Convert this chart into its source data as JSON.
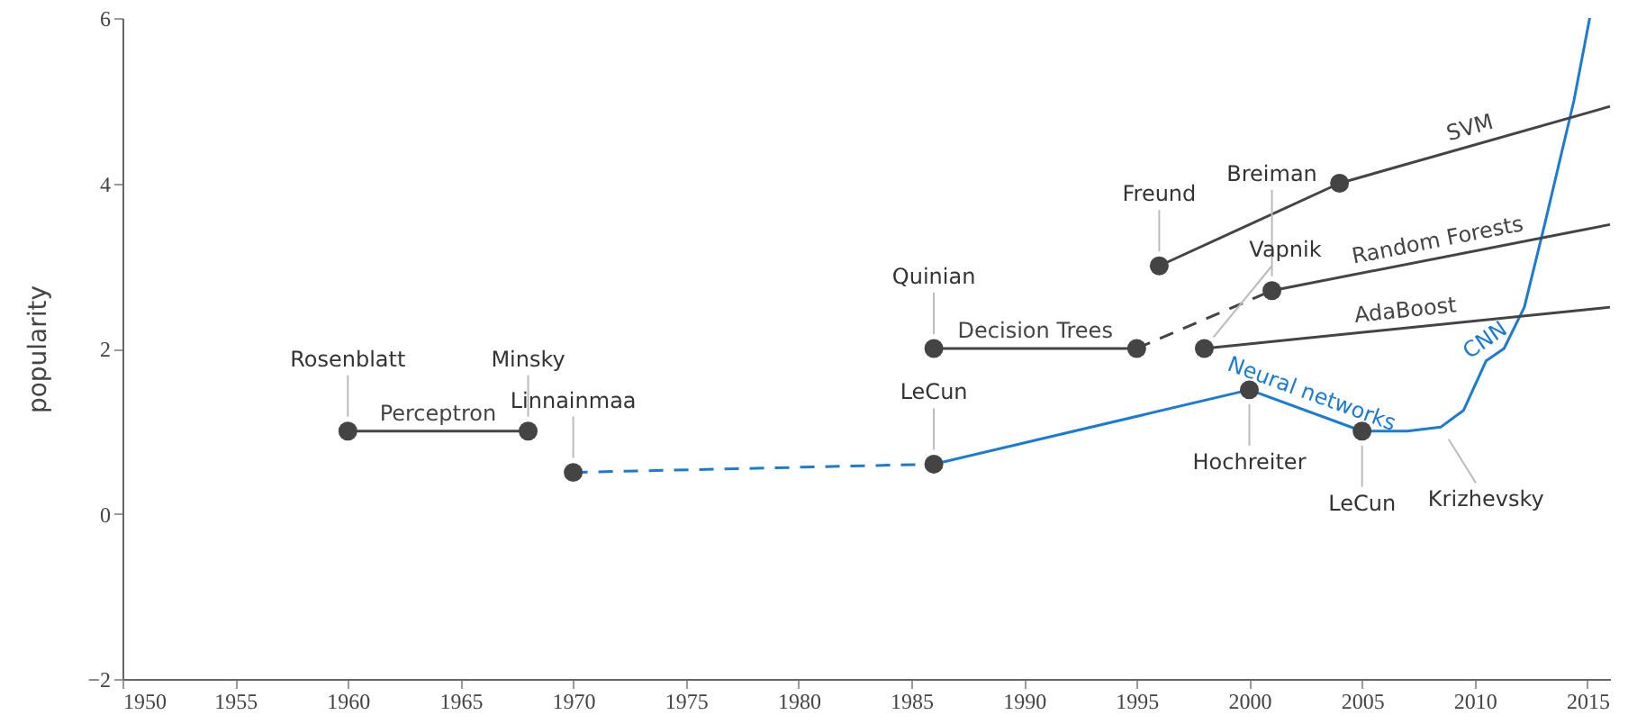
{
  "chart_data": {
    "type": "line",
    "ylabel": "popularity",
    "xlim": [
      1950,
      2016
    ],
    "ylim": [
      -2,
      6
    ],
    "xticks": [
      1950,
      1955,
      1960,
      1965,
      1970,
      1975,
      1980,
      1985,
      1990,
      1995,
      2000,
      2005,
      2010,
      2015
    ],
    "yticks": [
      -2,
      0,
      2,
      4,
      6
    ],
    "grid": false,
    "marker": "none",
    "series": [
      {
        "name": "Perceptron",
        "color": "#444444",
        "line_style": "solid",
        "x": [
          1960,
          1968
        ],
        "values": [
          1,
          1
        ]
      },
      {
        "color": "#1a7ad4",
        "line_style": "dashed",
        "x": [
          1970,
          1986
        ],
        "values": [
          0.5,
          0.6
        ]
      },
      {
        "name": "Neural networks",
        "color": "#1a7ad4",
        "line_style": "solid",
        "x": [
          1986,
          2000,
          2005
        ],
        "values": [
          0.6,
          1.5,
          1.0
        ]
      },
      {
        "name": "CNN",
        "color": "#1a7ad4",
        "line_style": "solid",
        "x": [
          2005,
          2007,
          2008.5,
          2009.5,
          2010.5,
          2011.3,
          2012.2,
          2013.1,
          2014.4,
          2015.1
        ],
        "values": [
          1.0,
          1.0,
          1.05,
          1.25,
          1.85,
          2.0,
          2.5,
          3.5,
          5.0,
          6.0
        ]
      },
      {
        "name": "Decision Trees",
        "color": "#444444",
        "line_style": "solid",
        "x": [
          1986,
          1995
        ],
        "values": [
          2,
          2
        ]
      },
      {
        "color": "#444444",
        "line_style": "dashed",
        "x": [
          1995,
          2001
        ],
        "values": [
          2,
          2.7
        ]
      },
      {
        "name": "Random Forests",
        "color": "#444444",
        "line_style": "solid",
        "x": [
          2001,
          2016
        ],
        "values": [
          2.7,
          3.5
        ]
      },
      {
        "name": "SVM",
        "color": "#444444",
        "line_style": "solid",
        "x": [
          1996,
          2004,
          2016
        ],
        "values": [
          3,
          4,
          4.93
        ]
      },
      {
        "name": "AdaBoost",
        "color": "#444444",
        "line_style": "solid",
        "x": [
          1998,
          2016
        ],
        "values": [
          2,
          2.5
        ]
      },
      {
        "type": "scatter",
        "color": "#444444",
        "marker": "circle",
        "x": [
          1960,
          1968,
          1970,
          1986,
          2000,
          2005,
          1986,
          1995,
          2001,
          1996,
          2004,
          1998
        ],
        "values": [
          1,
          1,
          0.5,
          0.6,
          1.5,
          1.0,
          2,
          2,
          2.7,
          3,
          4,
          2
        ]
      }
    ],
    "annotations": [
      {
        "text": "Rosenblatt",
        "x": 1960,
        "y": 1
      },
      {
        "text": "Minsky",
        "x": 1968,
        "y": 1
      },
      {
        "text": "Linnainmaa",
        "x": 1970,
        "y": 0.5
      },
      {
        "text": "Quinian",
        "x": 1986,
        "y": 2
      },
      {
        "text": "LeCun",
        "x": 1986,
        "y": 0.6
      },
      {
        "text": "Vapnik",
        "x": 1998,
        "y": 2
      },
      {
        "text": "Freund",
        "x": 1996,
        "y": 3
      },
      {
        "text": "Breiman",
        "x": 2001,
        "y": 2.7
      },
      {
        "text": "Hochreiter",
        "x": 2000,
        "y": 1.5
      },
      {
        "text": "LeCun",
        "x": 2005,
        "y": 1.0
      },
      {
        "text": "Krizhevsky",
        "x": 2008.5,
        "y": 1.05
      }
    ]
  }
}
